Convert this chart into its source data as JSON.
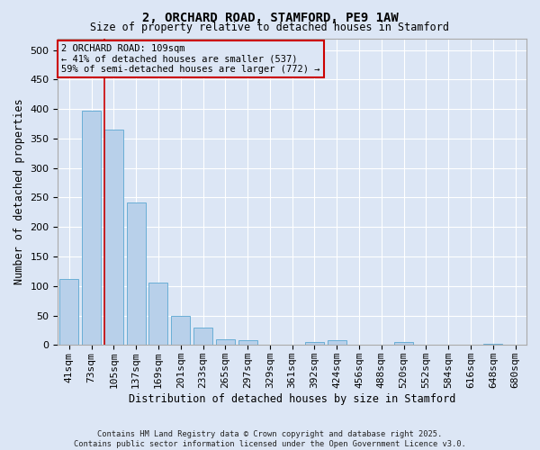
{
  "title": "2, ORCHARD ROAD, STAMFORD, PE9 1AW",
  "subtitle": "Size of property relative to detached houses in Stamford",
  "xlabel": "Distribution of detached houses by size in Stamford",
  "ylabel": "Number of detached properties",
  "footer": "Contains HM Land Registry data © Crown copyright and database right 2025.\nContains public sector information licensed under the Open Government Licence v3.0.",
  "categories": [
    "41sqm",
    "73sqm",
    "105sqm",
    "137sqm",
    "169sqm",
    "201sqm",
    "233sqm",
    "265sqm",
    "297sqm",
    "329sqm",
    "361sqm",
    "392sqm",
    "424sqm",
    "456sqm",
    "488sqm",
    "520sqm",
    "552sqm",
    "584sqm",
    "616sqm",
    "648sqm",
    "680sqm"
  ],
  "values": [
    112,
    397,
    365,
    242,
    105,
    50,
    30,
    10,
    8,
    1,
    0,
    5,
    8,
    0,
    0,
    5,
    0,
    0,
    0,
    2,
    1
  ],
  "bar_color": "#b8d0ea",
  "bar_edge_color": "#6aaed6",
  "background_color": "#dce6f5",
  "grid_color": "#ffffff",
  "vline_index": 2,
  "vline_color": "#cc0000",
  "annotation_text": "2 ORCHARD ROAD: 109sqm\n← 41% of detached houses are smaller (537)\n59% of semi-detached houses are larger (772) →",
  "annotation_box_color": "#cc0000",
  "ylim": [
    0,
    520
  ],
  "yticks": [
    0,
    50,
    100,
    150,
    200,
    250,
    300,
    350,
    400,
    450,
    500
  ]
}
